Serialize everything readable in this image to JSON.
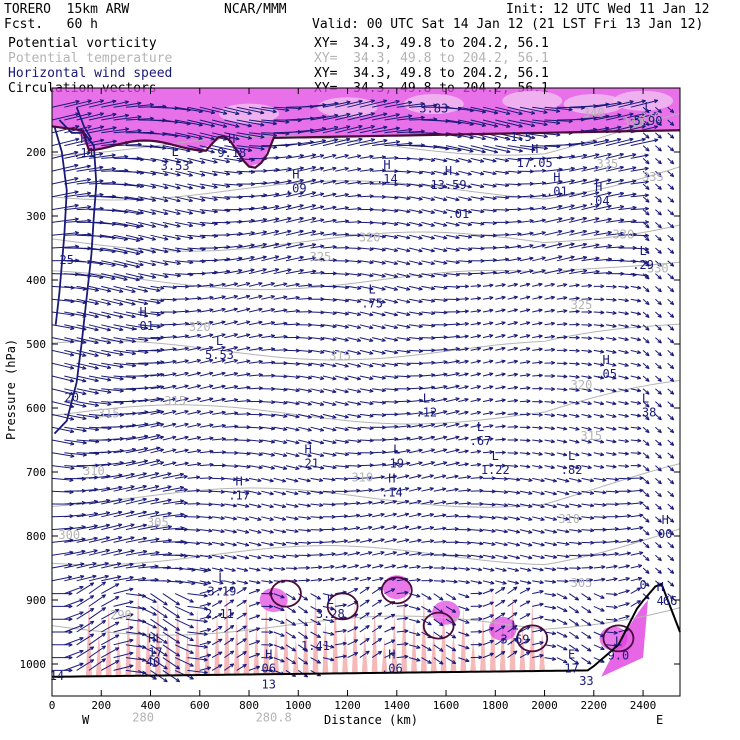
{
  "header": {
    "model": "TORERO  15km ARW",
    "center": "NCAR/MMM",
    "init": "Init: 12 UTC Wed 11 Jan 12",
    "fcst": "Fcst.   60 h",
    "valid": "Valid: 00 UTC Sat 14 Jan 12 (21 LST Fri 13 Jan 12)"
  },
  "fields": [
    {
      "name": "Potential vorticity",
      "xy": "XY=  34.3, 49.8 to 204.2, 56.1",
      "color": "#000000"
    },
    {
      "name": "Potential temperature",
      "xy": "XY=  34.3, 49.8 to 204.2, 56.1",
      "color": "#b4b4b4"
    },
    {
      "name": "Horizontal wind speed",
      "xy": "XY=  34.3, 49.8 to 204.2, 56.1",
      "color": "#1a1a7a"
    },
    {
      "name": "Circulation vectors",
      "xy": "XY=  34.3, 49.8 to 204.2, 56.1",
      "color": "#000000"
    }
  ],
  "colors": {
    "vectors": "#1a1a7a",
    "theta": "#b4b4b4",
    "speed": "#1a1a7a",
    "pv_fill": "#e040e0",
    "pv_low": "#f4a8a8",
    "pv_contour": "#4a0a3a"
  },
  "chart_data": {
    "type": "vertical-cross-section",
    "xlabel": "Distance (km)",
    "ylabel": "Pressure (hPa)",
    "xlim": [
      0,
      2550
    ],
    "ylim": [
      1050,
      100
    ],
    "xticks": [
      0,
      200,
      400,
      600,
      800,
      1000,
      1200,
      1400,
      1600,
      1800,
      2000,
      2200,
      2400
    ],
    "yticks": [
      200,
      300,
      400,
      500,
      600,
      700,
      800,
      900,
      1000
    ],
    "left_end": "W",
    "right_end": "E",
    "theta_labels": [
      {
        "x": 1260,
        "p": 715,
        "v": "310"
      },
      {
        "x": 1170,
        "p": 525,
        "v": "315"
      },
      {
        "x": 1290,
        "p": 340,
        "v": "320"
      },
      {
        "x": 1090,
        "p": 370,
        "v": "325"
      },
      {
        "x": 2360,
        "p": 160,
        "v": "340"
      },
      {
        "x": 2430,
        "p": 152,
        "v": "340"
      },
      {
        "x": 2200,
        "p": 145,
        "v": "340"
      },
      {
        "x": 2255,
        "p": 225,
        "v": "335"
      },
      {
        "x": 2440,
        "p": 245,
        "v": "335"
      },
      {
        "x": 2320,
        "p": 335,
        "v": "330"
      },
      {
        "x": 2460,
        "p": 388,
        "v": "330"
      },
      {
        "x": 2150,
        "p": 445,
        "v": "325"
      },
      {
        "x": 2150,
        "p": 570,
        "v": "320"
      },
      {
        "x": 2190,
        "p": 650,
        "v": "315"
      },
      {
        "x": 2100,
        "p": 780,
        "v": "310"
      },
      {
        "x": 2150,
        "p": 880,
        "v": "305"
      },
      {
        "x": 600,
        "p": 480,
        "v": "320"
      },
      {
        "x": 500,
        "p": 595,
        "v": "315"
      },
      {
        "x": 430,
        "p": 785,
        "v": "305"
      },
      {
        "x": 170,
        "p": 705,
        "v": "310"
      },
      {
        "x": 230,
        "p": 615,
        "v": "315"
      },
      {
        "x": 70,
        "p": 805,
        "v": "300"
      },
      {
        "x": 280,
        "p": 930,
        "v": "290"
      },
      {
        "x": 370,
        "p": 1090,
        "v": "280"
      },
      {
        "x": 900,
        "p": 1090,
        "v": "280.8"
      }
    ],
    "speed_labels": [
      {
        "x": 60,
        "p": 375,
        "v": "25"
      },
      {
        "x": 80,
        "p": 590,
        "v": "20"
      },
      {
        "x": 20,
        "p": 1025,
        "v": "14"
      }
    ],
    "extrema": [
      {
        "x": 130,
        "p": 205,
        "t": "H",
        "v": ".11"
      },
      {
        "x": 500,
        "p": 225,
        "t": "L",
        "v": "3.53"
      },
      {
        "x": 730,
        "p": 205,
        "t": "H",
        "v": "9.18"
      },
      {
        "x": 990,
        "p": 260,
        "t": "H",
        "v": ".09"
      },
      {
        "x": 1360,
        "p": 245,
        "t": "H",
        "v": ".14"
      },
      {
        "x": 1610,
        "p": 255,
        "t": "H",
        "v": "13.59"
      },
      {
        "x": 1650,
        "p": 300,
        "t": "",
        "v": ".01"
      },
      {
        "x": 1550,
        "p": 135,
        "t": "",
        "v": "3.83"
      },
      {
        "x": 1890,
        "p": 180,
        "t": "",
        "v": "-1.5"
      },
      {
        "x": 1960,
        "p": 220,
        "t": "H",
        "v": "17.05"
      },
      {
        "x": 2050,
        "p": 265,
        "t": "H",
        "v": ".01"
      },
      {
        "x": 2220,
        "p": 280,
        "t": "H",
        "v": ".04"
      },
      {
        "x": 2420,
        "p": 155,
        "t": "L",
        "v": "5.90"
      },
      {
        "x": 2400,
        "p": 380,
        "t": "L",
        "v": ".29"
      },
      {
        "x": 1300,
        "p": 440,
        "t": "L",
        "v": ".75"
      },
      {
        "x": 370,
        "p": 475,
        "t": "H",
        "v": ".01"
      },
      {
        "x": 680,
        "p": 520,
        "t": "L",
        "v": "5.53"
      },
      {
        "x": 2250,
        "p": 550,
        "t": "H",
        "v": ".05"
      },
      {
        "x": 2410,
        "p": 610,
        "t": "L",
        "v": ".38"
      },
      {
        "x": 1520,
        "p": 610,
        "t": "L",
        "v": ".12"
      },
      {
        "x": 1740,
        "p": 655,
        "t": "L",
        "v": ".67"
      },
      {
        "x": 1800,
        "p": 700,
        "t": "L",
        "v": "1.22"
      },
      {
        "x": 2110,
        "p": 700,
        "t": "L",
        "v": ".82"
      },
      {
        "x": 1400,
        "p": 690,
        "t": "L",
        "v": "19"
      },
      {
        "x": 1040,
        "p": 690,
        "t": "H",
        "v": ".21"
      },
      {
        "x": 1380,
        "p": 735,
        "t": "H",
        "v": ".14"
      },
      {
        "x": 760,
        "p": 740,
        "t": "H",
        "v": ".17"
      },
      {
        "x": 2490,
        "p": 800,
        "t": "H",
        "v": "00"
      },
      {
        "x": 2400,
        "p": 880,
        "t": "",
        "v": "0"
      },
      {
        "x": 2470,
        "p": 905,
        "t": "H",
        "v": "4"
      },
      {
        "x": 2510,
        "p": 905,
        "t": "",
        "v": "66"
      },
      {
        "x": 690,
        "p": 890,
        "t": "L",
        "v": "3.19"
      },
      {
        "x": 680,
        "p": 925,
        "t": "",
        "v": "2.11"
      },
      {
        "x": 1130,
        "p": 925,
        "t": "L",
        "v": "3.28"
      },
      {
        "x": 1070,
        "p": 975,
        "t": "",
        "v": "1.41"
      },
      {
        "x": 1880,
        "p": 965,
        "t": "L",
        "v": "3.69"
      },
      {
        "x": 2300,
        "p": 990,
        "t": "L",
        "v": "9.0"
      },
      {
        "x": 2110,
        "p": 1010,
        "t": "E",
        "v": "17"
      },
      {
        "x": 2170,
        "p": 1030,
        "t": "",
        "v": "33"
      },
      {
        "x": 420,
        "p": 985,
        "t": "HL",
        "v": "17"
      },
      {
        "x": 410,
        "p": 1000,
        "t": "",
        "v": "40"
      },
      {
        "x": 880,
        "p": 1010,
        "t": "H",
        "v": "06"
      },
      {
        "x": 880,
        "p": 1035,
        "t": "",
        "v": "13"
      },
      {
        "x": 1380,
        "p": 1010,
        "t": "H",
        "v": ".06"
      }
    ]
  }
}
